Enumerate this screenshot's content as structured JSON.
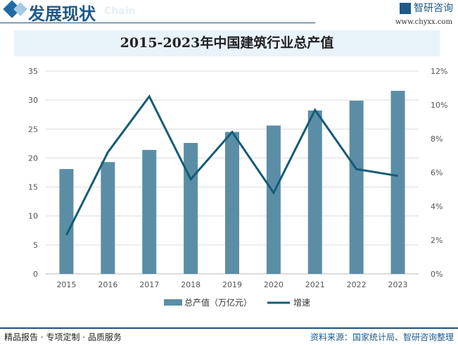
{
  "header": {
    "title": "发展现状",
    "subtitle": "Chain",
    "brand": "智研咨询",
    "url": "www.chyxx.com"
  },
  "chart_data": {
    "type": "bar+line",
    "title": "2015-2023年中国建筑行业总产值",
    "categories": [
      "2015",
      "2016",
      "2017",
      "2018",
      "2019",
      "2020",
      "2021",
      "2022",
      "2023"
    ],
    "series": [
      {
        "name": "总产值（万亿元）",
        "type": "bar",
        "axis": "left",
        "color": "#5b8ea6",
        "values": [
          18.1,
          19.3,
          21.4,
          22.6,
          24.5,
          25.6,
          28.2,
          29.9,
          31.6
        ]
      },
      {
        "name": "增速",
        "type": "line",
        "axis": "right",
        "color": "#155b76",
        "values": [
          2.3,
          7.2,
          10.5,
          5.6,
          8.4,
          4.8,
          9.7,
          6.2,
          5.8
        ]
      }
    ],
    "ylim_left": [
      0,
      35
    ],
    "yticks_left": [
      "0",
      "5",
      "10",
      "15",
      "20",
      "25",
      "30",
      "35"
    ],
    "ylim_right": [
      0,
      12
    ],
    "yticks_right": [
      "0%",
      "2%",
      "4%",
      "6%",
      "8%",
      "10%",
      "12%"
    ],
    "grid": true,
    "legend": "bottom"
  },
  "footer": {
    "left": "精品报告 · 专项定制 · 品质服务",
    "right": "资料来源：国家统计局、智研咨询整理"
  }
}
